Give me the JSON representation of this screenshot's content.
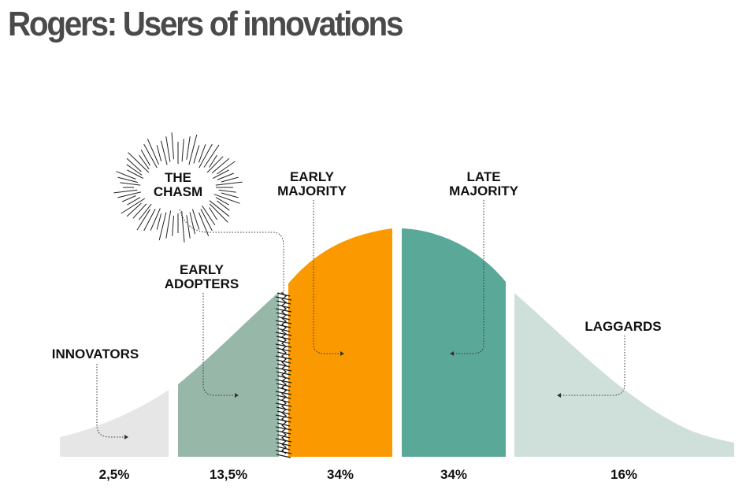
{
  "title": "Rogers: Users of innovations",
  "chasm_label": [
    "THE",
    "CHASM"
  ],
  "segments": [
    {
      "name": "innovators",
      "label": [
        "INNOVATORS"
      ],
      "share": "2,5%",
      "color": "#e6e6e7"
    },
    {
      "name": "early-adopters",
      "label": [
        "EARLY",
        "ADOPTERS"
      ],
      "share": "13,5%",
      "color": "#97b7a8"
    },
    {
      "name": "early-majority",
      "label": [
        "EARLY",
        "MAJORITY"
      ],
      "share": "34%",
      "color": "#fa9900"
    },
    {
      "name": "late-majority",
      "label": [
        "LATE",
        "MAJORITY"
      ],
      "share": "34%",
      "color": "#5aa898"
    },
    {
      "name": "laggards",
      "label": [
        "LAGGARDS"
      ],
      "share": "16%",
      "color": "#cfe0da"
    }
  ]
}
